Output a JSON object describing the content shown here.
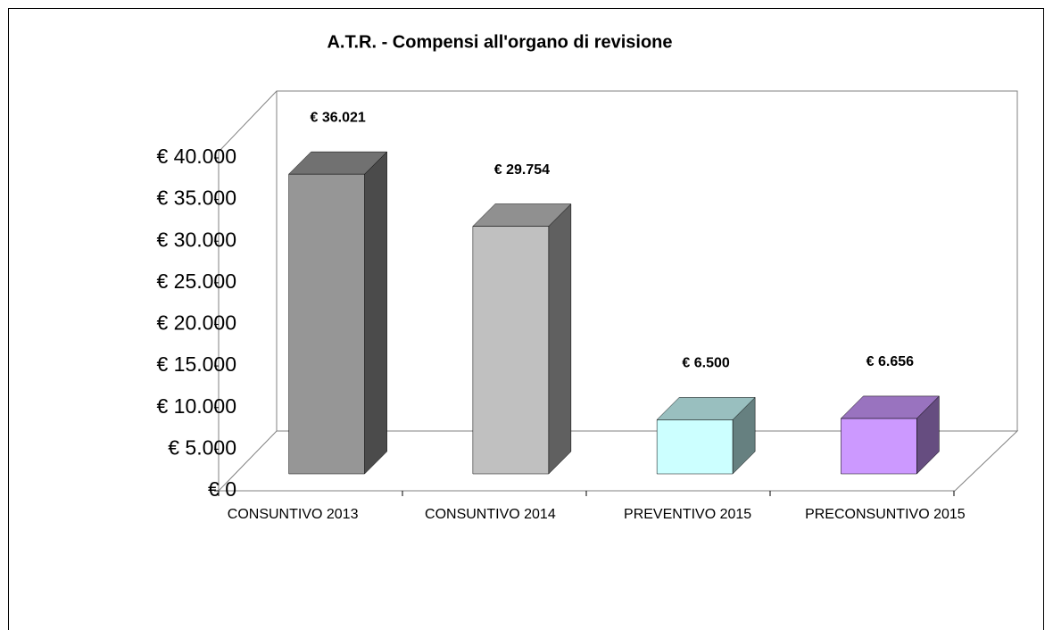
{
  "chart_data": {
    "type": "bar3d",
    "title": "A.T.R. - Compensi all'organo di revisione",
    "categories": [
      "CONSUNTIVO 2013",
      "CONSUNTIVO 2014",
      "PREVENTIVO 2015",
      "PRECONSUNTIVO 2015"
    ],
    "values": [
      36021,
      29754,
      6500,
      6656
    ],
    "value_labels": [
      "€ 36.021",
      "€ 29.754",
      "€ 6.500",
      "€ 6.656"
    ],
    "colors": [
      "#969696",
      "#c0c0c0",
      "#ccffff",
      "#cc99ff"
    ],
    "ylim": [
      0,
      40000
    ],
    "yticks": [
      {
        "value": 0,
        "label": "€ 0"
      },
      {
        "value": 5000,
        "label": "€ 5.000"
      },
      {
        "value": 10000,
        "label": "€ 10.000"
      },
      {
        "value": 15000,
        "label": "€ 15.000"
      },
      {
        "value": 20000,
        "label": "€ 20.000"
      },
      {
        "value": 25000,
        "label": "€ 25.000"
      },
      {
        "value": 30000,
        "label": "€ 30.000"
      },
      {
        "value": 35000,
        "label": "€ 35.000"
      },
      {
        "value": 40000,
        "label": "€ 40.000"
      }
    ]
  }
}
